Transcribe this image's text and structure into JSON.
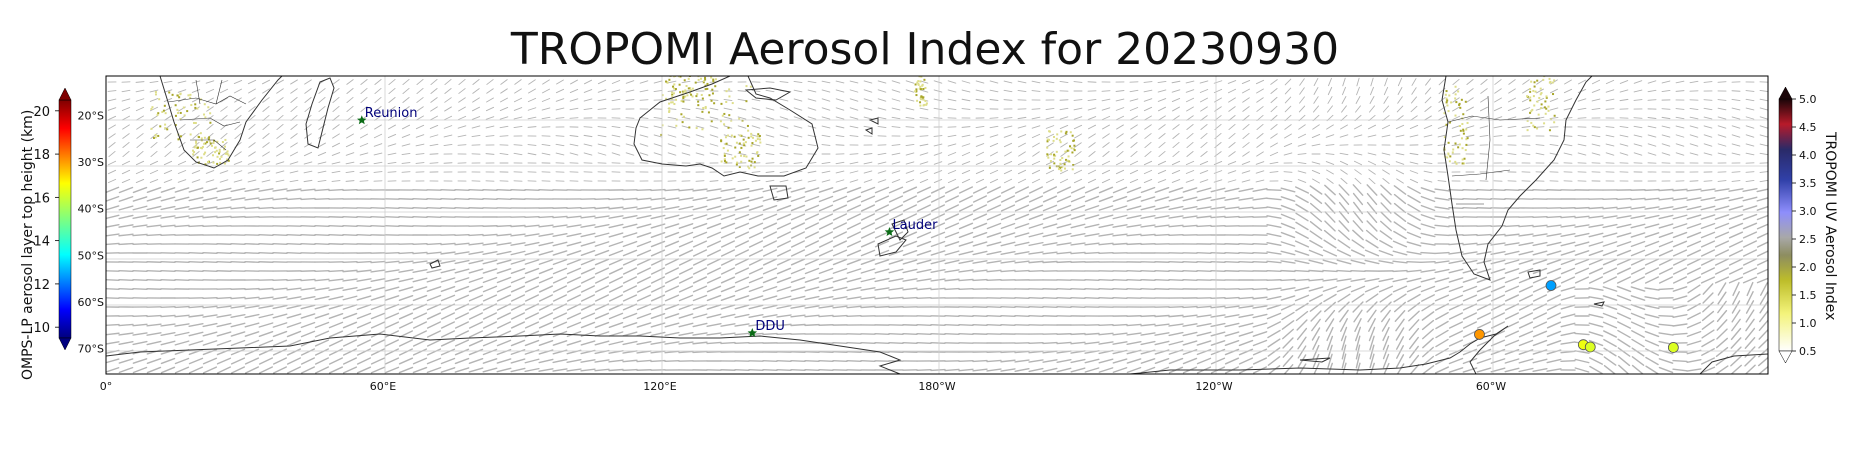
{
  "title": "TROPOMI Aerosol Index for 20230930",
  "left_colorbar": {
    "label": "OMPS-LP aerosol layer top height (km)",
    "ticks": [
      "20",
      "18",
      "16",
      "14",
      "12",
      "10"
    ],
    "range_km": [
      9.5,
      20.5
    ]
  },
  "right_colorbar": {
    "label": "TROPOMI UV Aerosol Index",
    "ticks": [
      "5.0",
      "4.5",
      "4.0",
      "3.5",
      "3.0",
      "2.5",
      "2.0",
      "1.5",
      "1.0",
      "0.5"
    ],
    "range": [
      0.5,
      5.0
    ]
  },
  "lat_ticks": [
    "20°S",
    "30°S",
    "40°S",
    "50°S",
    "60°S",
    "70°S"
  ],
  "lon_ticks": [
    "0°",
    "60°E",
    "120°E",
    "180°W",
    "120°W",
    "60°W"
  ],
  "sites": [
    {
      "name": "Reunion",
      "lon": 55.4,
      "lat": -21.0
    },
    {
      "name": "Lauder",
      "lon": 169.7,
      "lat": -45.0
    },
    {
      "name": "DDU",
      "lon": 140.0,
      "lat": -66.7
    }
  ],
  "omps_points": [
    {
      "lon": 313,
      "lat": -56.5,
      "height_km": 12.6
    },
    {
      "lon": 297.5,
      "lat": -67.0,
      "height_km": 17.5
    },
    {
      "lon": 320,
      "lat": -69.2,
      "height_km": 16.2
    },
    {
      "lon": 321.5,
      "lat": -69.7,
      "height_km": 16.0
    },
    {
      "lon": 339.5,
      "lat": -69.8,
      "height_km": 16.0
    }
  ],
  "colors": {
    "site_marker": "#0b6b16",
    "site_label": "#00007a",
    "coast": "#333333",
    "wind_arrows": "#b4b4b4",
    "aerosol_low": "#c8c84a"
  }
}
